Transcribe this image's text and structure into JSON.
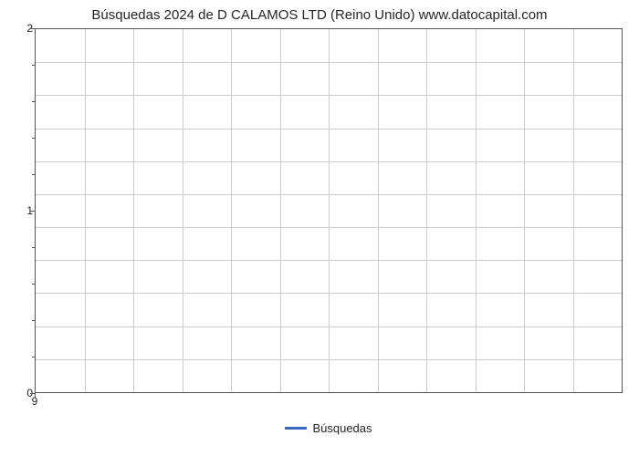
{
  "chart": {
    "type": "line",
    "title": "Búsquedas 2024 de D CALAMOS LTD (Reino Unido) www.datocapital.com",
    "title_fontsize": 15,
    "background_color": "#ffffff",
    "plot_border_color": "#555555",
    "grid_color": "#cccccc",
    "axis_label_color": "#262626",
    "axis_label_fontsize": 12,
    "y_axis": {
      "lim": [
        0,
        2
      ],
      "major_ticks": [
        0,
        1,
        2
      ],
      "minor_ticks_count_between_majors": 4,
      "label_format": "integer"
    },
    "x_axis": {
      "lim": [
        9,
        10
      ],
      "major_ticks": [
        9
      ],
      "vertical_gridlines_count": 12
    },
    "horizontal_gridlines_count": 11,
    "series": [
      {
        "name": "Búsquedas",
        "color": "#3767c0",
        "line_width": 3,
        "values": []
      }
    ],
    "legend": {
      "position": "bottom-center",
      "items": [
        {
          "label": "Búsquedas",
          "color": "#3767c0"
        }
      ]
    }
  }
}
